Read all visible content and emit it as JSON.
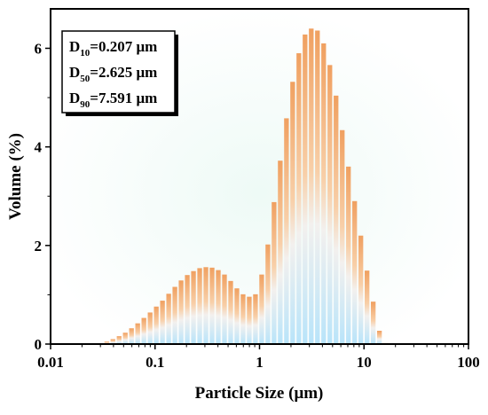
{
  "chart_data": {
    "type": "bar",
    "xlabel": "Particle Size (μm)",
    "ylabel": "Volume (%)",
    "x_scale": "log",
    "xlim": [
      0.01,
      100
    ],
    "ylim": [
      0,
      6.8
    ],
    "x_ticks": [
      "0.01",
      "0.1",
      "1",
      "10",
      "100"
    ],
    "y_ticks": [
      "0",
      "2",
      "4",
      "6"
    ],
    "grid": false,
    "annotation": [
      {
        "base": "D",
        "sub": "10",
        "text": "=0.207 μm"
      },
      {
        "base": "D",
        "sub": "50",
        "text": "=2.625 μm"
      },
      {
        "base": "D",
        "sub": "90",
        "text": "=7.591 μm"
      }
    ],
    "colors": {
      "bar_top": "#f0a060",
      "bar_bottom": "#b8e4fa",
      "background_tint": "#eefaf6"
    },
    "x": [
      0.0345,
      0.0395,
      0.0453,
      0.0519,
      0.0595,
      0.0682,
      0.0782,
      0.0897,
      0.1028,
      0.1178,
      0.1351,
      0.1548,
      0.1775,
      0.2035,
      0.2333,
      0.2674,
      0.3066,
      0.3514,
      0.4029,
      0.4619,
      0.5295,
      0.607,
      0.6958,
      0.7977,
      0.9145,
      1.0484,
      1.2018,
      1.3777,
      1.5794,
      1.8105,
      2.0755,
      2.3794,
      2.7276,
      3.1269,
      3.5846,
      4.1093,
      4.7107,
      5.4003,
      6.1907,
      7.0968,
      8.1356,
      9.3264,
      10.6915,
      12.2564,
      14.0504,
      16.107
    ],
    "values": [
      0.05,
      0.1,
      0.16,
      0.23,
      0.32,
      0.42,
      0.53,
      0.64,
      0.76,
      0.88,
      1.02,
      1.16,
      1.29,
      1.4,
      1.48,
      1.54,
      1.56,
      1.55,
      1.5,
      1.41,
      1.28,
      1.13,
      1.01,
      0.96,
      1.01,
      1.41,
      2.02,
      2.88,
      3.72,
      4.58,
      5.32,
      5.9,
      6.28,
      6.4,
      6.36,
      6.1,
      5.66,
      5.04,
      4.34,
      3.6,
      2.9,
      2.2,
      1.49,
      0.86,
      0.27,
      0.02
    ]
  }
}
